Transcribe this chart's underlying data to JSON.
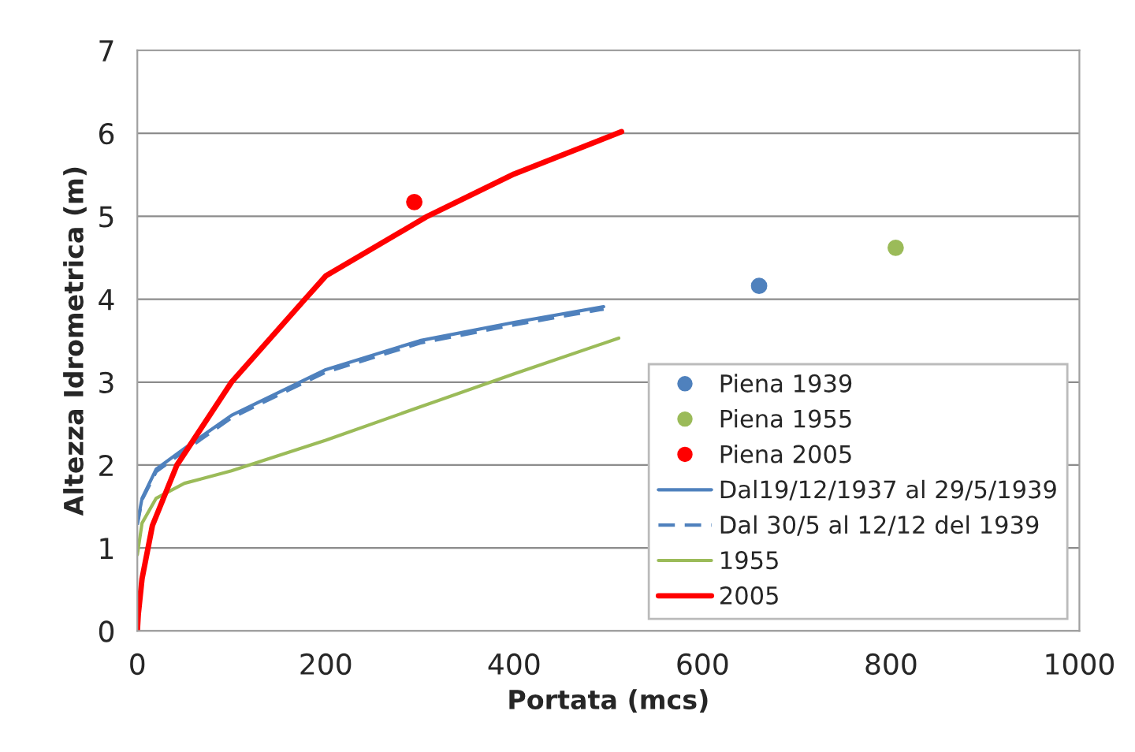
{
  "chart_data": {
    "type": "line",
    "xlabel": "Portata (mcs)",
    "ylabel": "Altezza Idrometrica (m)",
    "xlim": [
      0,
      1000
    ],
    "xticks": [
      0,
      200,
      400,
      600,
      800,
      1000
    ],
    "ylim": [
      0,
      7
    ],
    "yticks": [
      0,
      1,
      2,
      3,
      4,
      5,
      6,
      7
    ],
    "grid": "y",
    "legend": "lower right",
    "series": [
      {
        "name": "Piena 1939",
        "type": "scatter",
        "marker": "circle",
        "color": "#4f81bd",
        "x": [
          660
        ],
        "values": [
          4.16
        ]
      },
      {
        "name": "Piena 1955",
        "type": "scatter",
        "marker": "circle",
        "color": "#9bbb59",
        "x": [
          805
        ],
        "values": [
          4.62
        ]
      },
      {
        "name": "Piena 2005",
        "type": "scatter",
        "marker": "circle",
        "color": "#ff0000",
        "x": [
          294
        ],
        "values": [
          5.17
        ]
      },
      {
        "name": "Dal19/12/1937 al 29/5/1939",
        "line_style": "solid",
        "color": "#4f81bd",
        "x": [
          0,
          5,
          20,
          50,
          100,
          200,
          300,
          400,
          495
        ],
        "values": [
          1.3,
          1.6,
          1.95,
          2.2,
          2.6,
          3.15,
          3.5,
          3.72,
          3.91
        ]
      },
      {
        "name": "Dal 30/5 al 12/12 del 1939",
        "line_style": "dashed",
        "color": "#4f81bd",
        "x": [
          0,
          5,
          20,
          50,
          100,
          200,
          300,
          400,
          495
        ],
        "values": [
          1.28,
          1.58,
          1.92,
          2.17,
          2.57,
          3.12,
          3.47,
          3.69,
          3.88
        ]
      },
      {
        "name": "1955",
        "line_style": "solid",
        "color": "#9bbb59",
        "x": [
          0,
          5,
          20,
          50,
          100,
          200,
          300,
          400,
          511
        ],
        "values": [
          0.92,
          1.3,
          1.6,
          1.78,
          1.93,
          2.3,
          2.7,
          3.1,
          3.53
        ]
      },
      {
        "name": "2005",
        "line_style": "solid",
        "color": "#ff0000",
        "x": [
          0,
          1,
          5,
          16,
          42,
          100,
          178,
          200,
          308,
          400,
          514
        ],
        "values": [
          0,
          0.2,
          0.63,
          1.27,
          2,
          3,
          4,
          4.28,
          5,
          5.51,
          6.02
        ]
      }
    ]
  }
}
